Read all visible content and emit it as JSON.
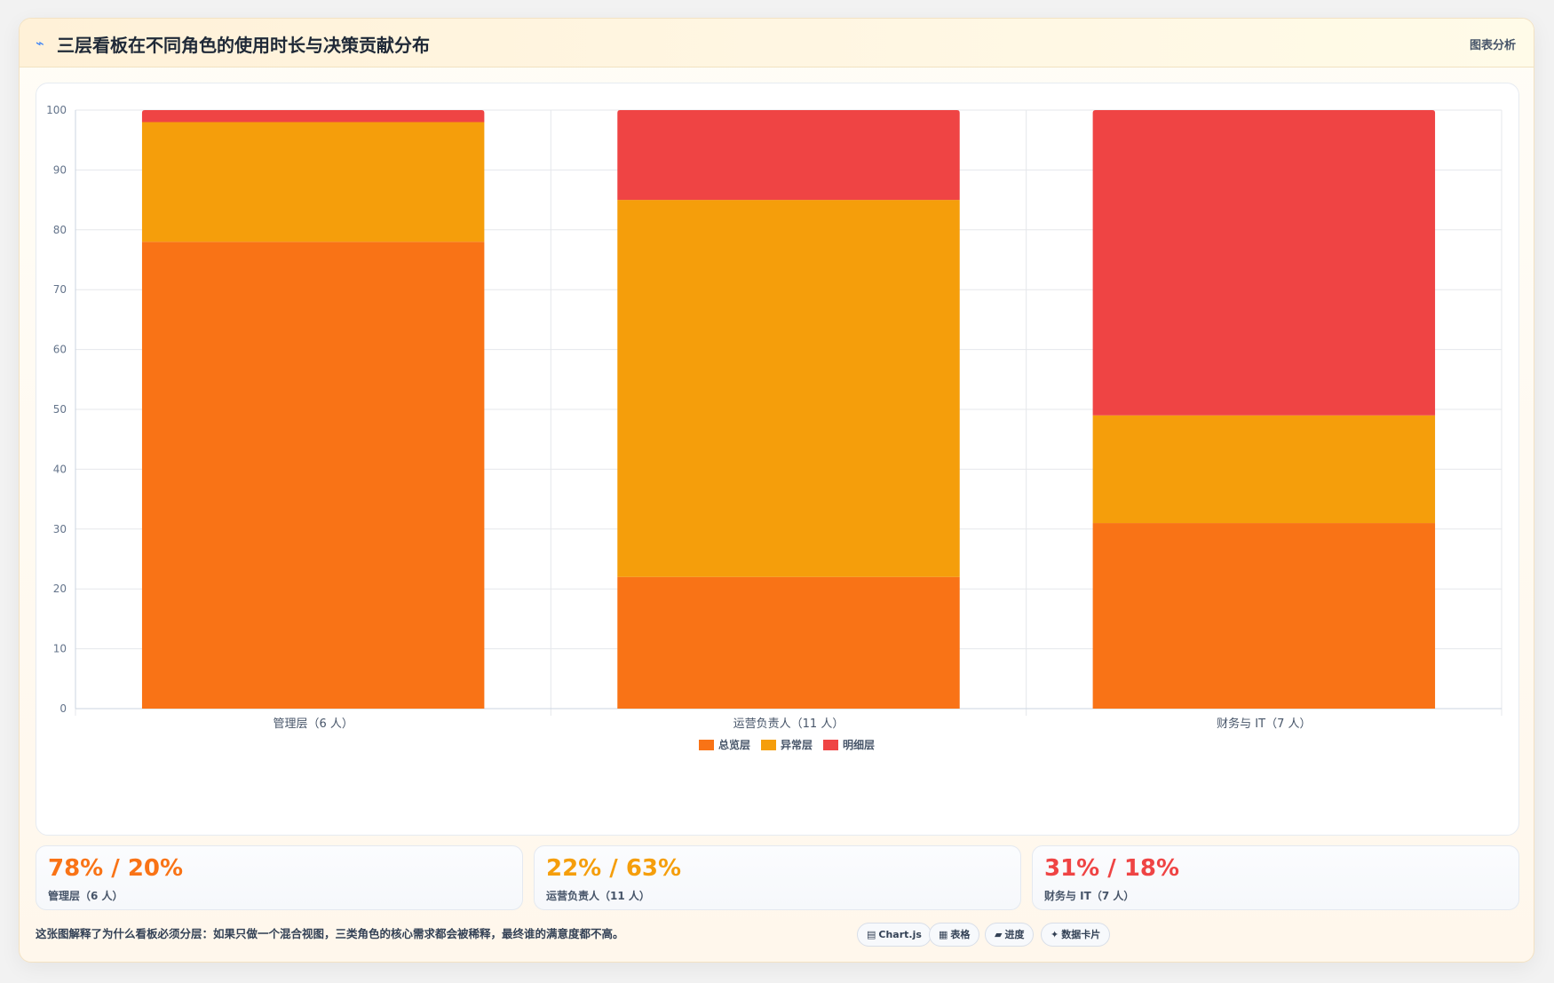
{
  "header": {
    "icon": "lightning-icon",
    "icon_glyph": "⌁",
    "title": "三层看板在不同角色的使用时长与决策贡献分布",
    "action_label": "图表分析"
  },
  "colors": {
    "overview": "#f97316",
    "anomaly": "#f59e0b",
    "detail": "#ef4444"
  },
  "chart_data": {
    "type": "bar",
    "stacked": true,
    "categories": [
      "管理层（6 人）",
      "运营负责人（11 人）",
      "财务与 IT（7 人）"
    ],
    "series": [
      {
        "name": "总览层",
        "values": [
          78,
          22,
          31
        ],
        "color": "#f97316"
      },
      {
        "name": "异常层",
        "values": [
          20,
          63,
          18
        ],
        "color": "#f59e0b"
      },
      {
        "name": "明细层",
        "values": [
          2,
          15,
          51
        ],
        "color": "#ef4444"
      }
    ],
    "ylim": [
      0,
      100
    ],
    "yticks": [
      0,
      10,
      20,
      30,
      40,
      50,
      60,
      70,
      80,
      90,
      100
    ],
    "grid": true,
    "legend_position": "bottom"
  },
  "stats": [
    {
      "value": "78% / 20%",
      "label": "管理层（6 人）",
      "color": "#f97316"
    },
    {
      "value": "22% / 63%",
      "label": "运营负责人（11 人）",
      "color": "#f59e0b"
    },
    {
      "value": "31% / 18%",
      "label": "财务与 IT（7 人）",
      "color": "#ef4444"
    }
  ],
  "footnote": "这张图解释了为什么看板必须分层：如果只做一个混合视图，三类角色的核心需求都会被稀释，最终谁的满意度都不高。",
  "chips": [
    {
      "icon": "chart-icon",
      "glyph": "▤",
      "label": "Chart.js"
    },
    {
      "icon": "table-icon",
      "glyph": "▦",
      "label": "表格"
    },
    {
      "icon": "progress-icon",
      "glyph": "▰",
      "label": "进度"
    },
    {
      "icon": "data-card-icon",
      "glyph": "✦",
      "label": "数据卡片"
    }
  ]
}
